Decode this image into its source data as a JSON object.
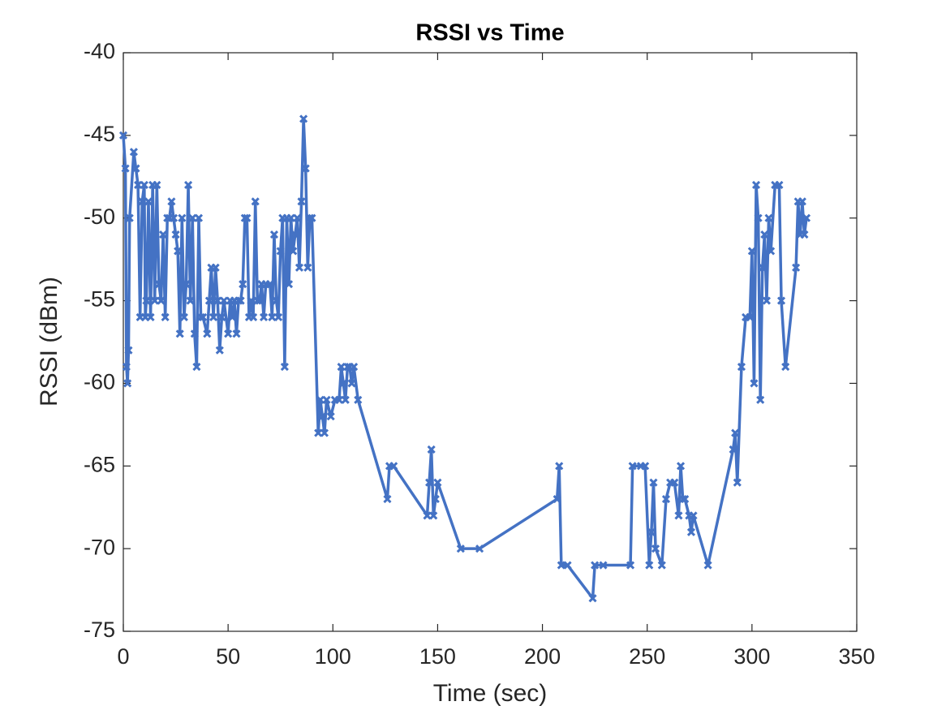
{
  "chart_data": {
    "type": "line",
    "title": "RSSI vs Time",
    "xlabel": "Time (sec)",
    "ylabel": "RSSI (dBm)",
    "color": "#4472c4",
    "marker": "x",
    "grid": false,
    "xlim": [
      0,
      350
    ],
    "xticks": [
      0,
      50,
      100,
      150,
      200,
      250,
      300,
      350
    ],
    "ylim": [
      -75,
      -40
    ],
    "yticks": [
      -75,
      -70,
      -65,
      -60,
      -55,
      -50,
      -45,
      -40
    ],
    "x": [
      0,
      1,
      1.5,
      2,
      2.5,
      3,
      5,
      6,
      7,
      8,
      9,
      10,
      10.5,
      11,
      12,
      13,
      14,
      15,
      16,
      17,
      18,
      19,
      20,
      21,
      22,
      23,
      24,
      25,
      26,
      27,
      28,
      29,
      30,
      31,
      32,
      33,
      34,
      35,
      36,
      37,
      38,
      40,
      41,
      42,
      43,
      44,
      45,
      46,
      47,
      48,
      50,
      51,
      52,
      53,
      54,
      55,
      56,
      57,
      58,
      59,
      60,
      61,
      62,
      63,
      64,
      65,
      66,
      67,
      68,
      70,
      71,
      72,
      73,
      74,
      75,
      76,
      77,
      78,
      79,
      80,
      81,
      82,
      83,
      84,
      85,
      86,
      87,
      88,
      89,
      90,
      93,
      94,
      95,
      96,
      97,
      99,
      101,
      103,
      104,
      105,
      106,
      107,
      108,
      109,
      110,
      112,
      126,
      127,
      129,
      145,
      146,
      147,
      148,
      149,
      150,
      161,
      170,
      207,
      208,
      209,
      212,
      224,
      225,
      229,
      242,
      243,
      247,
      249,
      251,
      252,
      253,
      254,
      257,
      259,
      261,
      263,
      265,
      266,
      267,
      268,
      270,
      271,
      272,
      279,
      291,
      292,
      293,
      295,
      297,
      299,
      300,
      301,
      302,
      303,
      304,
      305,
      306,
      307,
      308,
      309,
      311,
      313,
      314,
      316,
      321,
      322,
      323,
      324,
      325,
      326
    ],
    "values": [
      -45,
      -47,
      -59,
      -60,
      -58,
      -50,
      -46,
      -47,
      -48,
      -56,
      -49,
      -48,
      -56,
      -55,
      -49,
      -56,
      -48,
      -55,
      -48,
      -54,
      -55,
      -51,
      -56,
      -50,
      -50,
      -49,
      -50,
      -51,
      -52,
      -57,
      -50,
      -56,
      -54,
      -48,
      -55,
      -50,
      -57,
      -59,
      -50,
      -56,
      -56,
      -57,
      -55,
      -53,
      -56,
      -53,
      -55,
      -58,
      -56,
      -55,
      -57,
      -55,
      -56,
      -55,
      -57,
      -55,
      -55,
      -54,
      -50,
      -50,
      -56,
      -55,
      -56,
      -49,
      -55,
      -55,
      -54,
      -56,
      -54,
      -54,
      -56,
      -51,
      -55,
      -56,
      -52,
      -50,
      -59,
      -50,
      -54,
      -50,
      -52,
      -51,
      -50,
      -53,
      -49,
      -44,
      -47,
      -53,
      -50,
      -50,
      -63,
      -61,
      -62,
      -63,
      -61,
      -62,
      -61,
      -61,
      -59,
      -60,
      -61,
      -59,
      -59,
      -60,
      -59,
      -61,
      -67,
      -65,
      -65,
      -68,
      -66,
      -64,
      -68,
      -67,
      -66,
      -70,
      -70,
      -67,
      -65,
      -71,
      -71,
      -73,
      -71,
      -71,
      -71,
      -65,
      -65,
      -65,
      -71,
      -69,
      -66,
      -70,
      -71,
      -67,
      -66,
      -66,
      -68,
      -65,
      -67,
      -67,
      -68,
      -69,
      -68,
      -71,
      -64,
      -63,
      -66,
      -59,
      -56,
      -56,
      -52,
      -60,
      -48,
      -50,
      -61,
      -53,
      -51,
      -55,
      -50,
      -52,
      -48,
      -48,
      -55,
      -59,
      -53,
      -49,
      -51,
      -49,
      -51,
      -50
    ]
  }
}
